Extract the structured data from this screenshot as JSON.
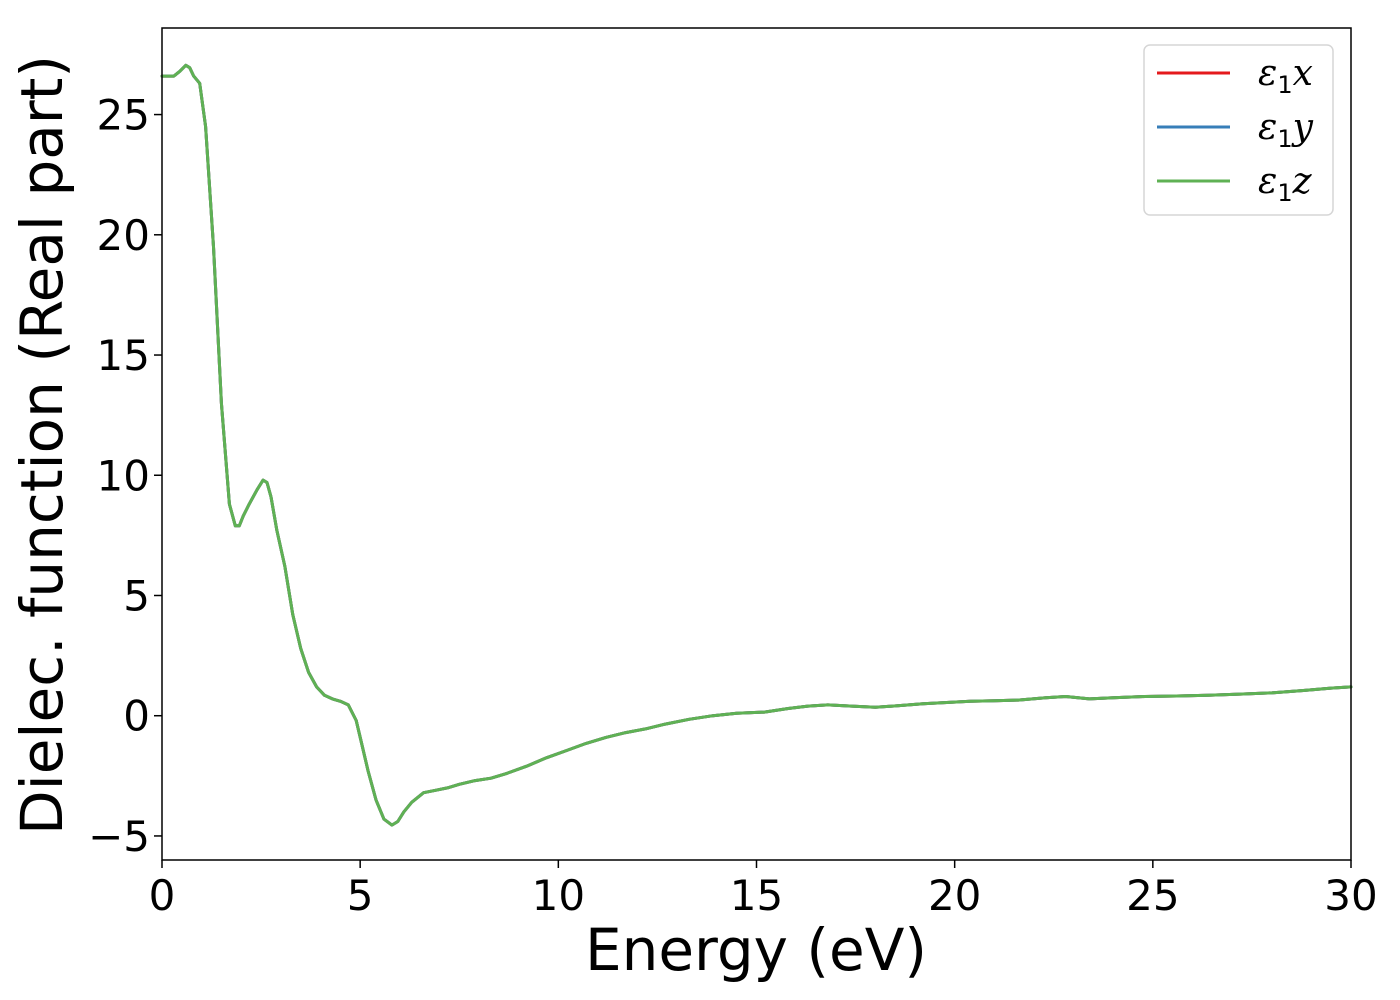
{
  "chart_data": {
    "type": "line",
    "xlabel": "Energy (eV)",
    "ylabel": "Dielec. function (Real part)",
    "xlim": [
      0,
      30
    ],
    "ylim": [
      -6,
      28.6
    ],
    "xticks": [
      0,
      5,
      10,
      15,
      20,
      25,
      30
    ],
    "yticks": [
      -5,
      0,
      5,
      10,
      15,
      20,
      25
    ],
    "xtick_labels": [
      "0",
      "5",
      "10",
      "15",
      "20",
      "25",
      "30"
    ],
    "ytick_labels": [
      "−5",
      "0",
      "5",
      "10",
      "15",
      "20",
      "25"
    ],
    "grid": false,
    "legend_position": "top-right",
    "series": [
      {
        "name": "ε1x",
        "legend_main": "ε",
        "legend_sub": "1",
        "legend_var": "x",
        "color": "#e41a1c",
        "x": [
          0.0,
          0.3,
          0.45,
          0.6,
          0.7,
          0.8,
          0.95,
          1.1,
          1.3,
          1.5,
          1.7,
          1.85,
          1.95,
          2.05,
          2.2,
          2.4,
          2.55,
          2.65,
          2.75,
          2.9,
          3.1,
          3.3,
          3.5,
          3.7,
          3.9,
          4.1,
          4.3,
          4.5,
          4.7,
          4.9,
          5.0,
          5.2,
          5.4,
          5.6,
          5.8,
          5.95,
          6.1,
          6.3,
          6.6,
          6.9,
          7.2,
          7.5,
          7.9,
          8.3,
          8.7,
          9.2,
          9.7,
          10.2,
          10.7,
          11.2,
          11.7,
          12.2,
          12.7,
          13.3,
          13.9,
          14.5,
          15.2,
          15.8,
          16.3,
          16.8,
          17.4,
          18.0,
          18.6,
          19.2,
          19.8,
          20.4,
          21.0,
          21.6,
          22.3,
          22.8,
          23.4,
          24.0,
          24.8,
          25.6,
          26.4,
          27.2,
          28.0,
          28.8,
          29.5,
          30.0
        ],
        "y": [
          26.6,
          26.6,
          26.8,
          27.05,
          26.95,
          26.6,
          26.3,
          24.5,
          19.5,
          13.0,
          8.8,
          7.9,
          7.9,
          8.3,
          8.8,
          9.4,
          9.8,
          9.7,
          9.1,
          7.7,
          6.2,
          4.2,
          2.8,
          1.8,
          1.2,
          0.85,
          0.7,
          0.6,
          0.45,
          -0.2,
          -0.9,
          -2.3,
          -3.5,
          -4.3,
          -4.55,
          -4.4,
          -4.0,
          -3.6,
          -3.2,
          -3.1,
          -3.0,
          -2.85,
          -2.7,
          -2.6,
          -2.4,
          -2.1,
          -1.75,
          -1.45,
          -1.15,
          -0.9,
          -0.7,
          -0.55,
          -0.35,
          -0.15,
          0.0,
          0.1,
          0.15,
          0.3,
          0.4,
          0.45,
          0.4,
          0.35,
          0.42,
          0.5,
          0.55,
          0.6,
          0.62,
          0.65,
          0.75,
          0.8,
          0.7,
          0.75,
          0.8,
          0.82,
          0.85,
          0.9,
          0.95,
          1.05,
          1.15,
          1.2
        ]
      },
      {
        "name": "ε1y",
        "legend_main": "ε",
        "legend_sub": "1",
        "legend_var": "y",
        "color": "#377eb8",
        "x": [
          0.0,
          0.3,
          0.45,
          0.6,
          0.7,
          0.8,
          0.95,
          1.1,
          1.3,
          1.5,
          1.7,
          1.85,
          1.95,
          2.05,
          2.2,
          2.4,
          2.55,
          2.65,
          2.75,
          2.9,
          3.1,
          3.3,
          3.5,
          3.7,
          3.9,
          4.1,
          4.3,
          4.5,
          4.7,
          4.9,
          5.0,
          5.2,
          5.4,
          5.6,
          5.8,
          5.95,
          6.1,
          6.3,
          6.6,
          6.9,
          7.2,
          7.5,
          7.9,
          8.3,
          8.7,
          9.2,
          9.7,
          10.2,
          10.7,
          11.2,
          11.7,
          12.2,
          12.7,
          13.3,
          13.9,
          14.5,
          15.2,
          15.8,
          16.3,
          16.8,
          17.4,
          18.0,
          18.6,
          19.2,
          19.8,
          20.4,
          21.0,
          21.6,
          22.3,
          22.8,
          23.4,
          24.0,
          24.8,
          25.6,
          26.4,
          27.2,
          28.0,
          28.8,
          29.5,
          30.0
        ],
        "y": [
          26.6,
          26.6,
          26.8,
          27.05,
          26.95,
          26.6,
          26.3,
          24.5,
          19.5,
          13.0,
          8.8,
          7.9,
          7.9,
          8.3,
          8.8,
          9.4,
          9.8,
          9.7,
          9.1,
          7.7,
          6.2,
          4.2,
          2.8,
          1.8,
          1.2,
          0.85,
          0.7,
          0.6,
          0.45,
          -0.2,
          -0.9,
          -2.3,
          -3.5,
          -4.3,
          -4.55,
          -4.4,
          -4.0,
          -3.6,
          -3.2,
          -3.1,
          -3.0,
          -2.85,
          -2.7,
          -2.6,
          -2.4,
          -2.1,
          -1.75,
          -1.45,
          -1.15,
          -0.9,
          -0.7,
          -0.55,
          -0.35,
          -0.15,
          0.0,
          0.1,
          0.15,
          0.3,
          0.4,
          0.45,
          0.4,
          0.35,
          0.42,
          0.5,
          0.55,
          0.6,
          0.62,
          0.65,
          0.75,
          0.8,
          0.7,
          0.75,
          0.8,
          0.82,
          0.85,
          0.9,
          0.95,
          1.05,
          1.15,
          1.2
        ]
      },
      {
        "name": "ε1z",
        "legend_main": "ε",
        "legend_sub": "1",
        "legend_var": "z",
        "color": "#5fb154",
        "x": [
          0.0,
          0.3,
          0.45,
          0.6,
          0.7,
          0.8,
          0.95,
          1.1,
          1.3,
          1.5,
          1.7,
          1.85,
          1.95,
          2.05,
          2.2,
          2.4,
          2.55,
          2.65,
          2.75,
          2.9,
          3.1,
          3.3,
          3.5,
          3.7,
          3.9,
          4.1,
          4.3,
          4.5,
          4.7,
          4.9,
          5.0,
          5.2,
          5.4,
          5.6,
          5.8,
          5.95,
          6.1,
          6.3,
          6.6,
          6.9,
          7.2,
          7.5,
          7.9,
          8.3,
          8.7,
          9.2,
          9.7,
          10.2,
          10.7,
          11.2,
          11.7,
          12.2,
          12.7,
          13.3,
          13.9,
          14.5,
          15.2,
          15.8,
          16.3,
          16.8,
          17.4,
          18.0,
          18.6,
          19.2,
          19.8,
          20.4,
          21.0,
          21.6,
          22.3,
          22.8,
          23.4,
          24.0,
          24.8,
          25.6,
          26.4,
          27.2,
          28.0,
          28.8,
          29.5,
          30.0
        ],
        "y": [
          26.6,
          26.6,
          26.8,
          27.05,
          26.95,
          26.6,
          26.3,
          24.5,
          19.5,
          13.0,
          8.8,
          7.9,
          7.9,
          8.3,
          8.8,
          9.4,
          9.8,
          9.7,
          9.1,
          7.7,
          6.2,
          4.2,
          2.8,
          1.8,
          1.2,
          0.85,
          0.7,
          0.6,
          0.45,
          -0.2,
          -0.9,
          -2.3,
          -3.5,
          -4.3,
          -4.55,
          -4.4,
          -4.0,
          -3.6,
          -3.2,
          -3.1,
          -3.0,
          -2.85,
          -2.7,
          -2.6,
          -2.4,
          -2.1,
          -1.75,
          -1.45,
          -1.15,
          -0.9,
          -0.7,
          -0.55,
          -0.35,
          -0.15,
          0.0,
          0.1,
          0.15,
          0.3,
          0.4,
          0.45,
          0.4,
          0.35,
          0.42,
          0.5,
          0.55,
          0.6,
          0.62,
          0.65,
          0.75,
          0.8,
          0.7,
          0.75,
          0.8,
          0.82,
          0.85,
          0.9,
          0.95,
          1.05,
          1.15,
          1.2
        ]
      }
    ]
  }
}
